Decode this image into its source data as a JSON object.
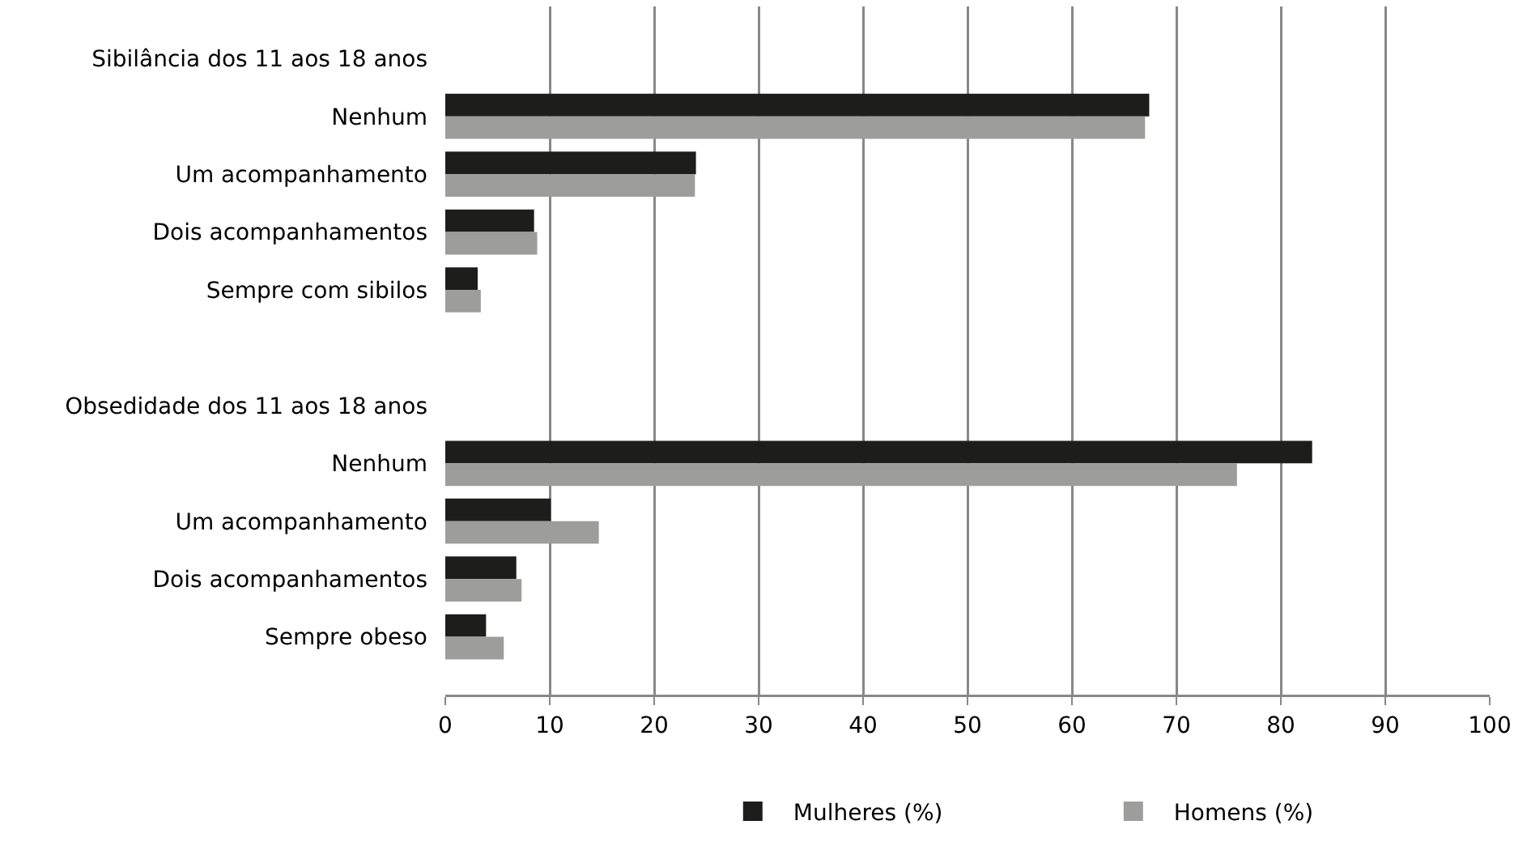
{
  "chart_data": {
    "type": "bar",
    "orientation": "horizontal",
    "categories": [
      "Sibilância dos 11 aos 18 anos",
      "Nenhum",
      "Um acompanhamento",
      "Dois acompanhamentos",
      "Sempre com sibilos",
      null,
      "Obsedidade dos 11 aos 18 anos",
      "Nenhum",
      "Um acompanhamento",
      "Dois acompanhamentos",
      "Sempre obeso"
    ],
    "series": [
      {
        "name": "Mulheres (%)",
        "color": "#1d1d1b",
        "values": [
          null,
          67.4,
          24.0,
          8.5,
          3.1,
          null,
          null,
          83.0,
          10.1,
          6.8,
          3.9
        ]
      },
      {
        "name": "Homens (%)",
        "color": "#9d9d9c",
        "values": [
          null,
          67.0,
          23.9,
          8.8,
          3.4,
          null,
          null,
          75.8,
          14.7,
          7.3,
          5.6
        ]
      }
    ],
    "xlim": [
      0,
      100
    ],
    "xticks": [
      0,
      10,
      20,
      30,
      40,
      50,
      60,
      70,
      80,
      90,
      100
    ],
    "grid": "x",
    "legend": "bottom"
  }
}
